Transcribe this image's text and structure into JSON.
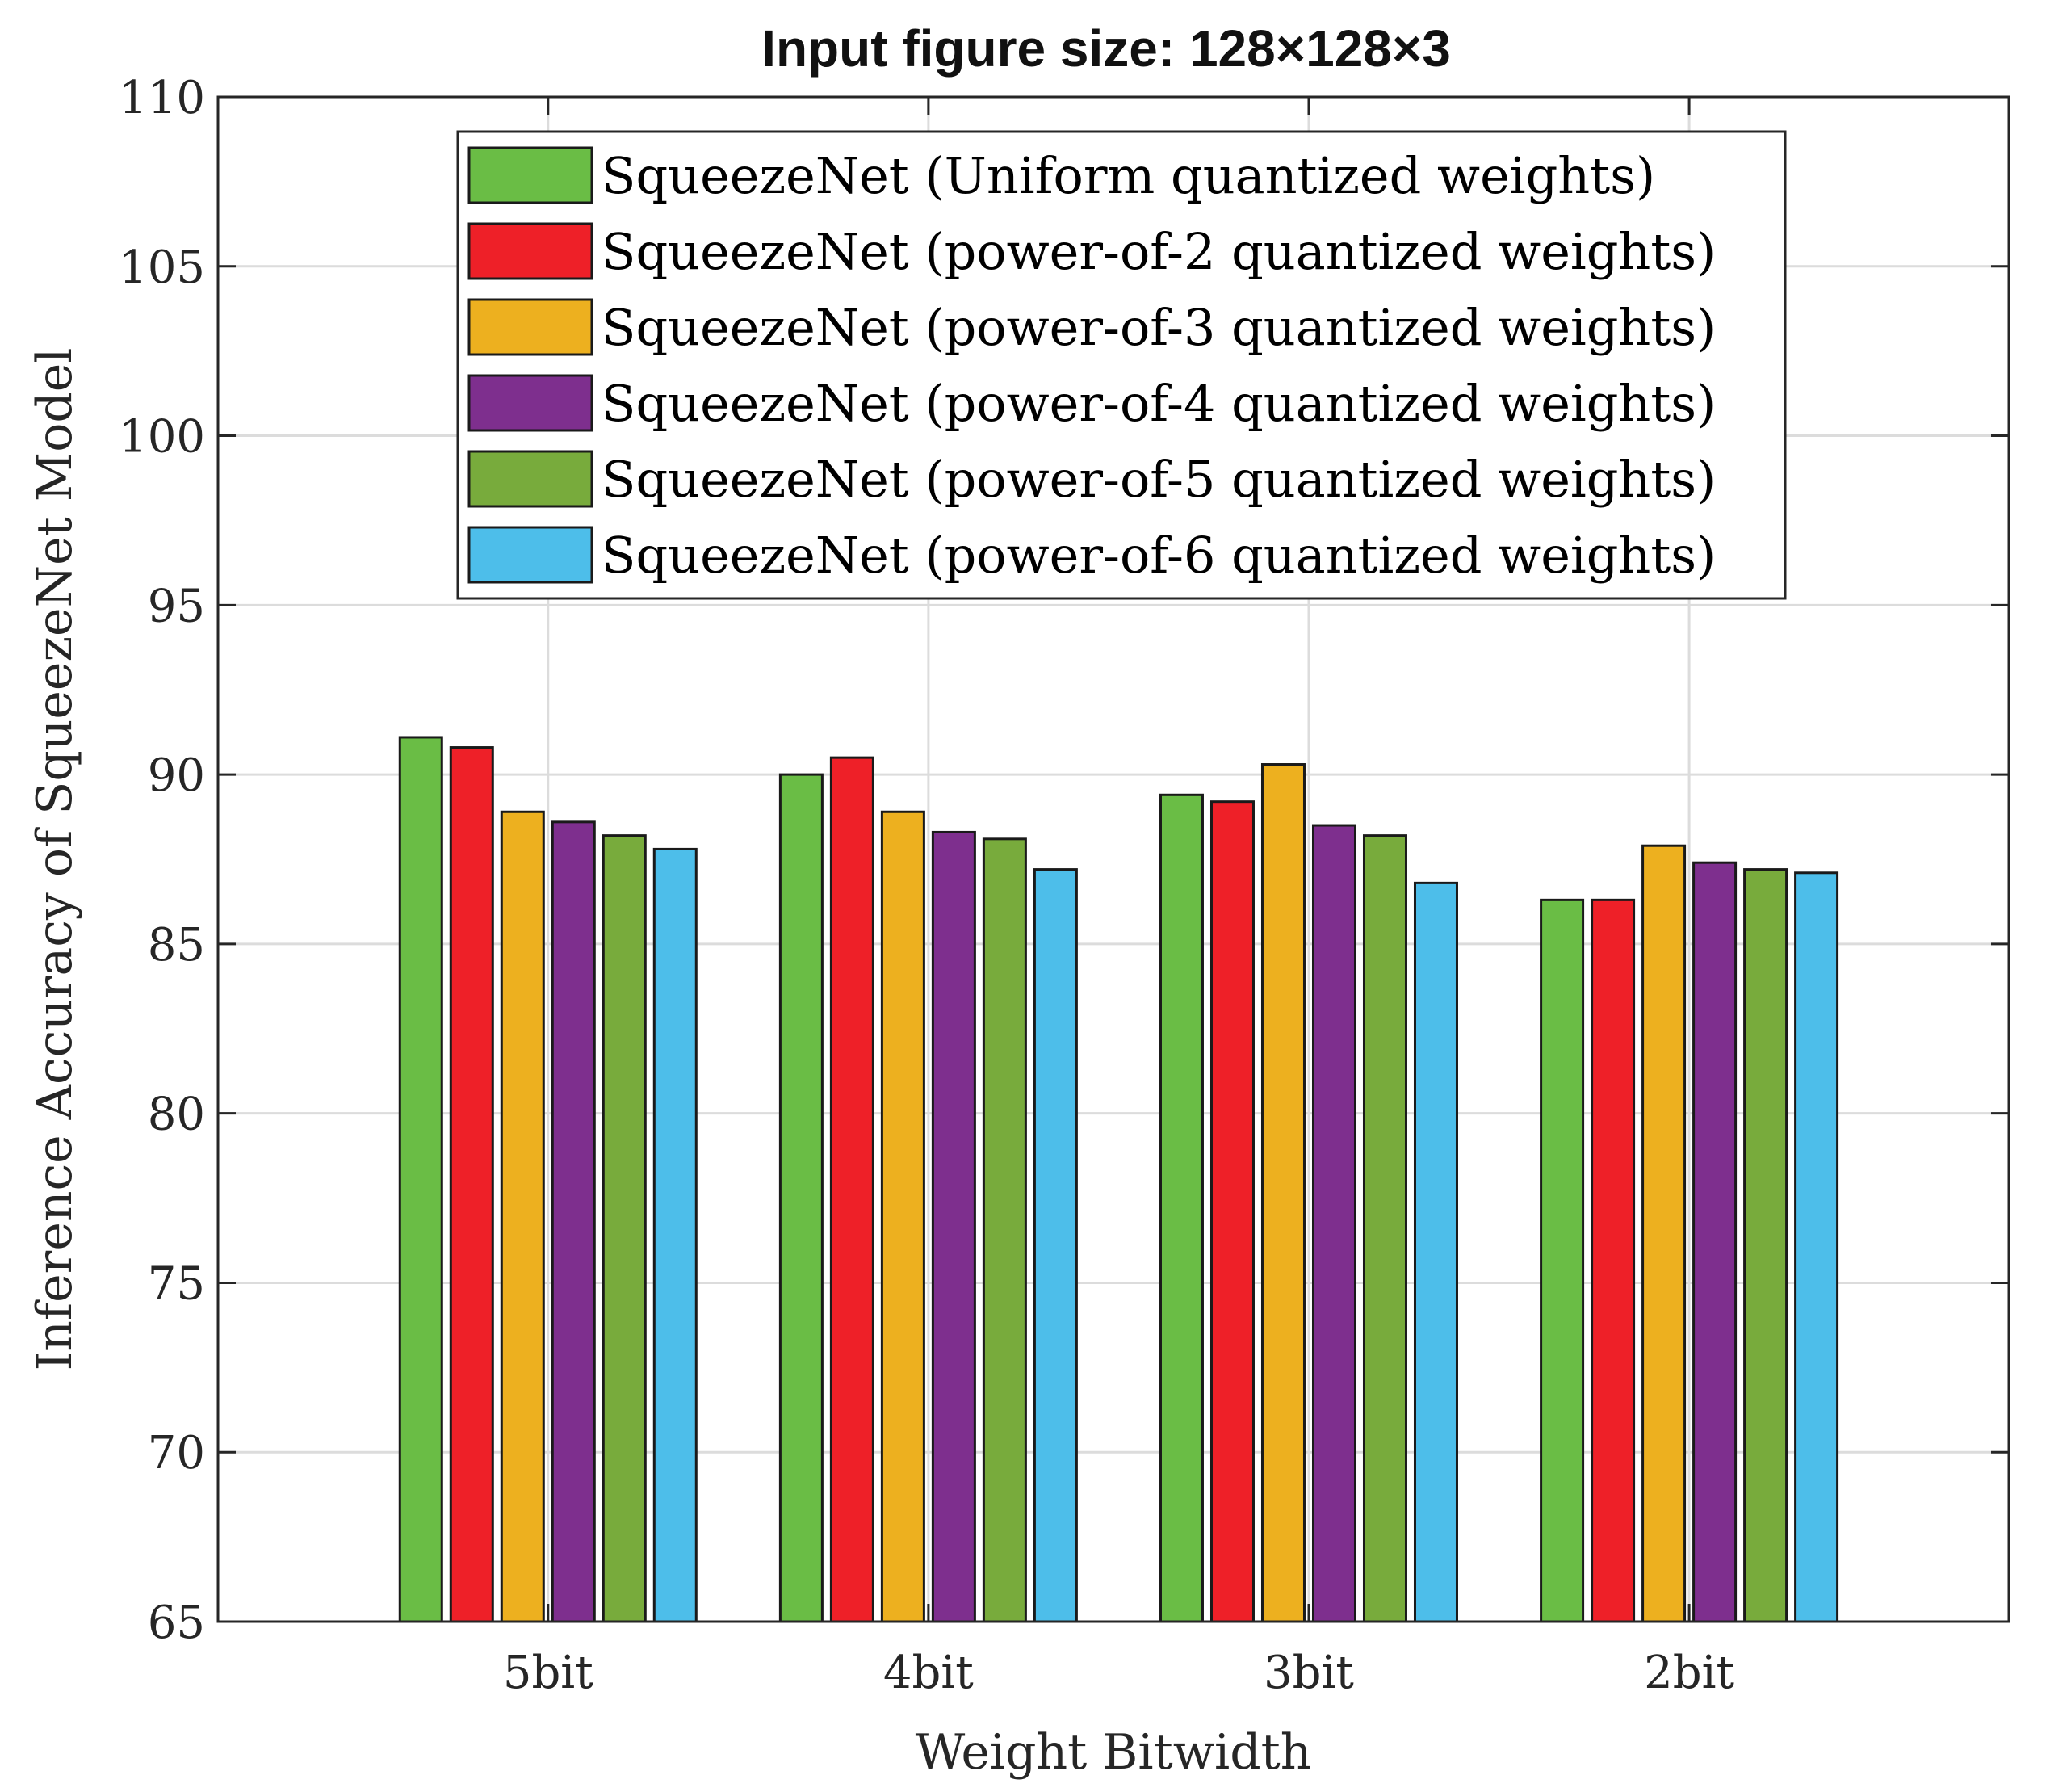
{
  "chart_data": {
    "type": "bar",
    "title": "Input figure size: 128×128×3",
    "xlabel": "Weight Bitwidth",
    "ylabel": "Inference Accuracy of SqueezeNet Model",
    "ylim": [
      65,
      110
    ],
    "yticks": [
      "65",
      "70",
      "75",
      "80",
      "85",
      "90",
      "95",
      "100",
      "105",
      "110"
    ],
    "categories": [
      "5bit",
      "4bit",
      "3bit",
      "2bit"
    ],
    "grid": true,
    "legend_position": "top-center",
    "series": [
      {
        "name": "SqueezeNet (Uniform quantized weights)",
        "color": "#6ABD45",
        "values": [
          91.1,
          90.0,
          89.4,
          86.3
        ]
      },
      {
        "name": "SqueezeNet (power-of-2 quantized weights)",
        "color": "#EE2028",
        "values": [
          90.8,
          90.5,
          89.2,
          86.3
        ]
      },
      {
        "name": "SqueezeNet (power-of-3 quantized weights)",
        "color": "#EDB01F",
        "values": [
          88.9,
          88.9,
          90.3,
          87.9
        ]
      },
      {
        "name": "SqueezeNet (power-of-4 quantized weights)",
        "color": "#7E2F8E",
        "values": [
          88.6,
          88.3,
          88.5,
          87.4
        ]
      },
      {
        "name": "SqueezeNet (power-of-5 quantized weights)",
        "color": "#78AB3C",
        "values": [
          88.2,
          88.1,
          88.2,
          87.2
        ]
      },
      {
        "name": "SqueezeNet (power-of-6 quantized weights)",
        "color": "#4DBEEA",
        "values": [
          87.8,
          87.2,
          86.8,
          87.1
        ]
      }
    ]
  }
}
